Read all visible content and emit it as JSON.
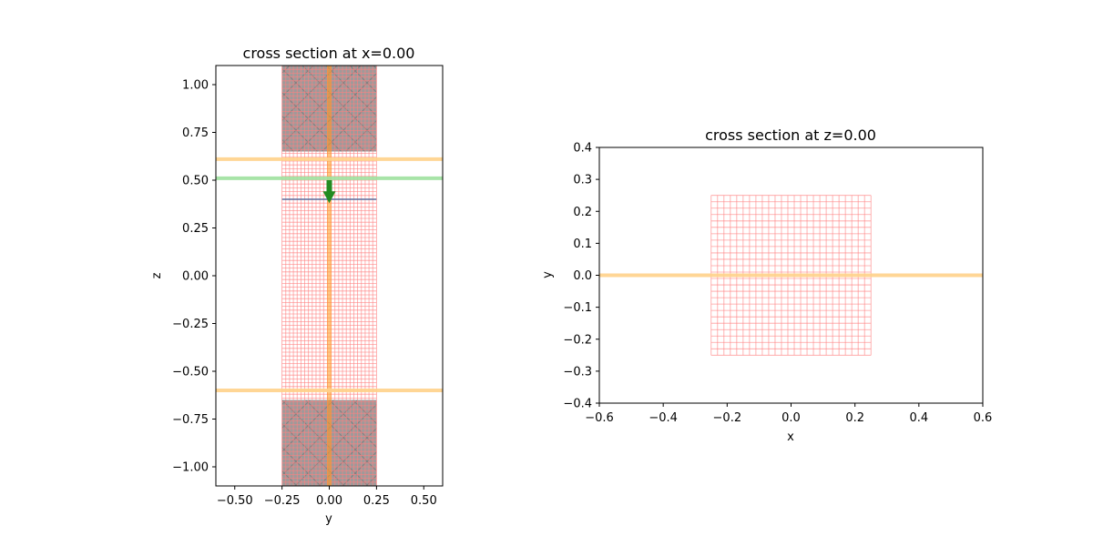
{
  "chart_data": [
    {
      "type": "scatter",
      "title": "cross section at x=0.00",
      "xlabel": "y",
      "ylabel": "z",
      "xlim": [
        -0.6,
        0.6
      ],
      "ylim": [
        -1.1,
        1.1
      ],
      "xticks": [
        "−0.50",
        "−0.25",
        "0.00",
        "0.25",
        "0.50"
      ],
      "yticks": [
        "−1.00",
        "−0.75",
        "−0.50",
        "−0.25",
        "0.00",
        "0.25",
        "0.50",
        "0.75",
        "1.00"
      ],
      "grid": false,
      "colors": {
        "structure_fill": "#9e9a9a",
        "structure_hatch": "#7f7f7f",
        "mesh_grid": "#ff8080",
        "monitor": "#ffd28a",
        "source_plane": "#9fe29f",
        "source_arrow": "#228b22",
        "symmetry_line": "#ff9a1f",
        "flux_line": "#5b6b9b"
      },
      "structures": [
        {
          "y": [
            -0.25,
            0.25
          ],
          "z": [
            0.65,
            1.1
          ]
        },
        {
          "y": [
            -0.25,
            0.25
          ],
          "z": [
            -1.1,
            -0.65
          ]
        }
      ],
      "mesh": {
        "y": [
          -0.25,
          0.25
        ],
        "z": [
          -1.1,
          1.1
        ],
        "step": 0.02
      },
      "monitor_lines_z": [
        0.61,
        -0.6
      ],
      "source_line_z": 0.51,
      "flux_line": {
        "y": [
          -0.25,
          0.25
        ],
        "z": 0.4
      },
      "source_arrow": {
        "y": 0.0,
        "z_from": 0.5,
        "z_to": 0.38
      },
      "symmetry_line_y": 0.0
    },
    {
      "type": "scatter",
      "title": "cross section at z=0.00",
      "xlabel": "x",
      "ylabel": "y",
      "xlim": [
        -0.6,
        0.6
      ],
      "ylim": [
        -0.4,
        0.4
      ],
      "xticks": [
        "−0.6",
        "−0.4",
        "−0.2",
        "0.0",
        "0.2",
        "0.4",
        "0.6"
      ],
      "yticks": [
        "−0.4",
        "−0.3",
        "−0.2",
        "−0.1",
        "0.0",
        "0.1",
        "0.2",
        "0.3",
        "0.4"
      ],
      "grid": false,
      "mesh": {
        "x": [
          -0.25,
          0.25
        ],
        "y": [
          -0.25,
          0.25
        ],
        "step": 0.02
      },
      "monitor_line_y": 0.0
    }
  ]
}
